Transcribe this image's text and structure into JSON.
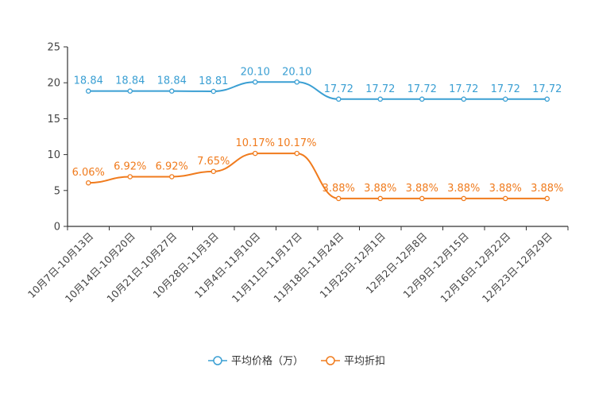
{
  "chart_data": {
    "type": "line",
    "title": "",
    "xlabel": "",
    "ylabel": "",
    "ylim": [
      0,
      25
    ],
    "yticks": [
      0,
      5,
      10,
      15,
      20,
      25
    ],
    "categories": [
      "10月7日-10月13日",
      "10月14日-10月20日",
      "10月21日-10月27日",
      "10月28日-11月3日",
      "11月4日-11月10日",
      "11月11日-11月17日",
      "11月18日-11月24日",
      "11月25日-12月1日",
      "12月2日-12月8日",
      "12月9日-12月15日",
      "12月16日-12月22日",
      "12月23日-12月29日"
    ],
    "series": [
      {
        "name": "平均价格（万）",
        "color": "#3a9fd3",
        "values": [
          18.84,
          18.84,
          18.84,
          18.81,
          20.1,
          20.1,
          17.72,
          17.72,
          17.72,
          17.72,
          17.72,
          17.72
        ],
        "labels": [
          "18.84",
          "18.84",
          "18.84",
          "18.81",
          "20.10",
          "20.10",
          "17.72",
          "17.72",
          "17.72",
          "17.72",
          "17.72",
          "17.72"
        ]
      },
      {
        "name": "平均折扣",
        "color": "#f07b1d",
        "values": [
          6.06,
          6.92,
          6.92,
          7.65,
          10.17,
          10.17,
          3.88,
          3.88,
          3.88,
          3.88,
          3.88,
          3.88
        ],
        "labels": [
          "6.06%",
          "6.92%",
          "6.92%",
          "7.65%",
          "10.17%",
          "10.17%",
          "3.88%",
          "3.88%",
          "3.88%",
          "3.88%",
          "3.88%",
          "3.88%"
        ]
      }
    ],
    "legend": "bottom-center",
    "grid": false
  }
}
